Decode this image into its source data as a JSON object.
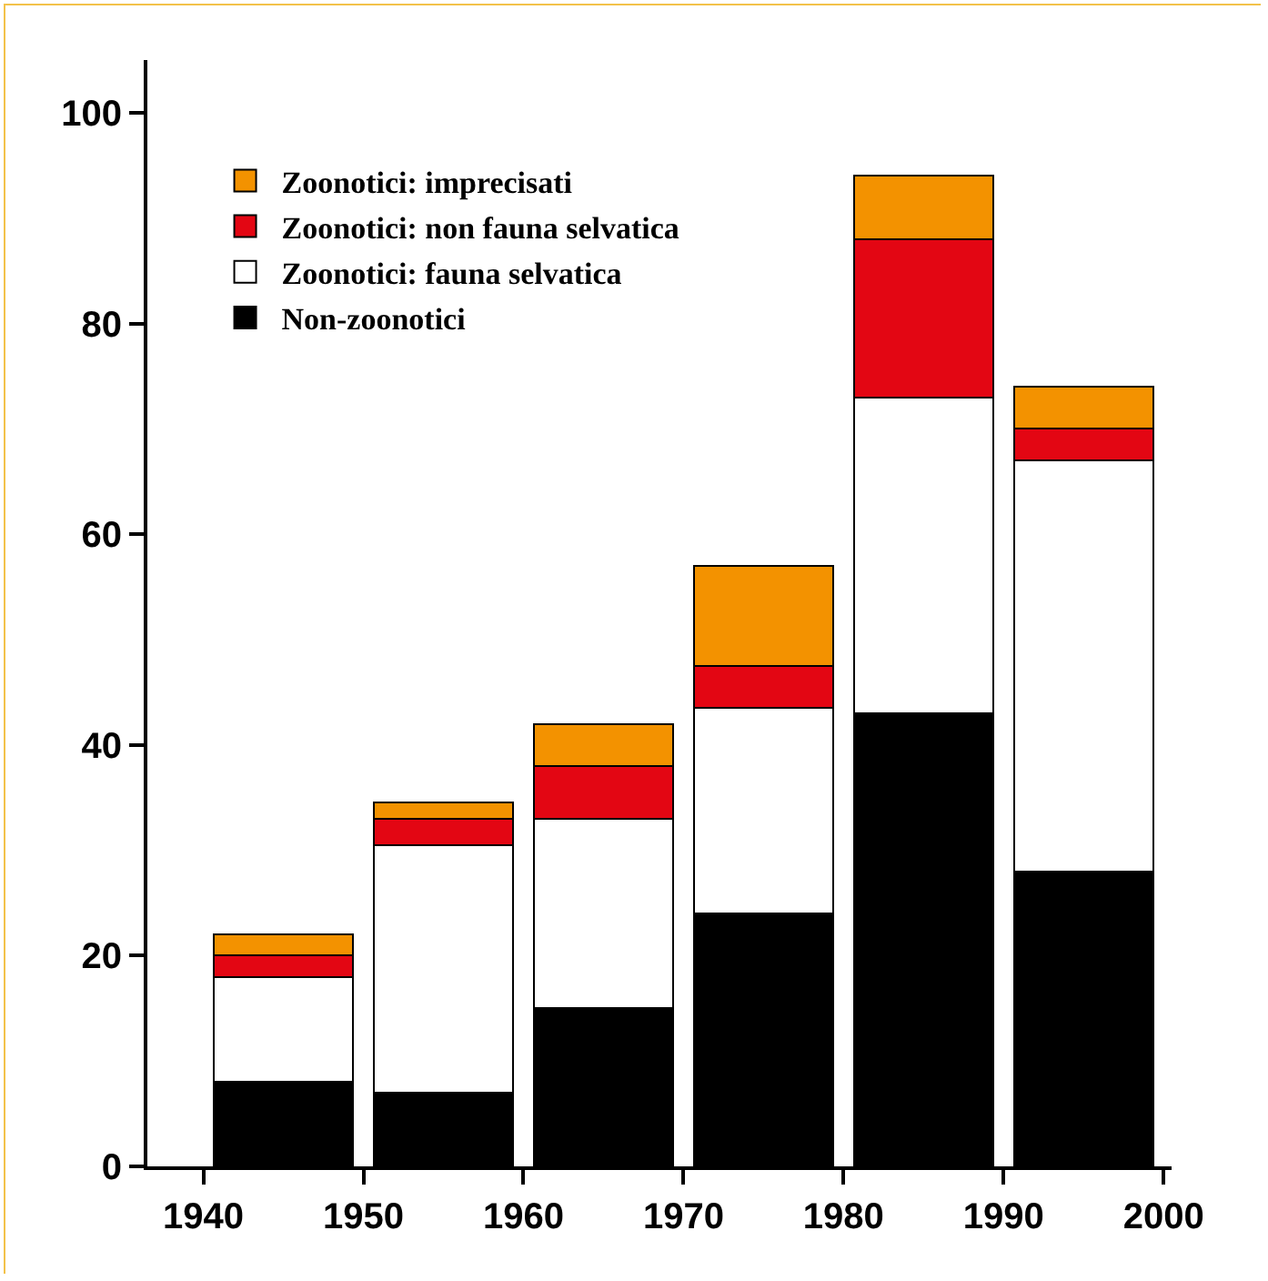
{
  "chart_data": {
    "type": "bar",
    "stacked": true,
    "x": [
      1945,
      1955,
      1965,
      1975,
      1985,
      1995
    ],
    "series": [
      {
        "name": "Non-zoonotici",
        "color": "#000000",
        "values": [
          8,
          7,
          15,
          24,
          43,
          28
        ]
      },
      {
        "name": "Zoonotici: fauna selvatica",
        "color": "#ffffff",
        "values": [
          10,
          23.5,
          18,
          19.5,
          30,
          39
        ]
      },
      {
        "name": "Zoonotici: non fauna selvatica",
        "color": "#e30613",
        "values": [
          2,
          2.5,
          5,
          4,
          15,
          3
        ]
      },
      {
        "name": "Zoonotici: imprecisati",
        "color": "#f39200",
        "values": [
          2,
          1.5,
          4,
          9.5,
          6,
          4
        ]
      }
    ],
    "xlim": [
      1936.5,
      2000.5
    ],
    "xticks": [
      1940,
      1950,
      1960,
      1970,
      1980,
      1990,
      2000
    ],
    "ylim": [
      0,
      105
    ],
    "yticks": [
      0,
      20,
      40,
      60,
      80,
      100
    ],
    "grid": false,
    "legend": "top left"
  }
}
